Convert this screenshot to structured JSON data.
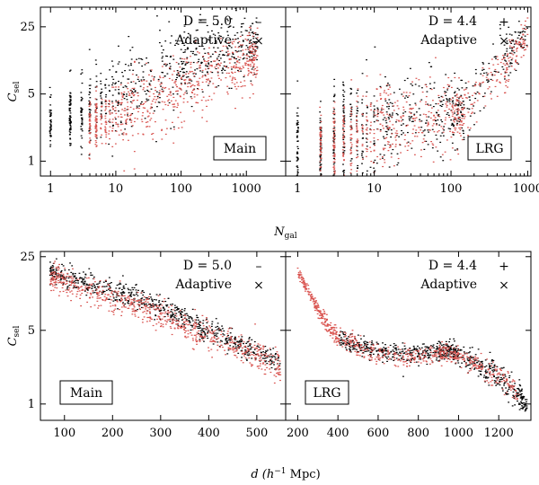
{
  "figure": {
    "top_xlabel_main": "N",
    "top_xlabel_sub": "gal",
    "bottom_xlabel": "d (h",
    "bottom_xlabel_sup": "−1",
    "bottom_xlabel_tail": " Mpc)",
    "ylabel_main": "C",
    "ylabel_sub": "sel"
  },
  "chart_data": [
    {
      "type": "scatter",
      "panel": "top-left",
      "label": "Main",
      "xscale": "log",
      "yscale": "log",
      "xlim": [
        0.7,
        4000
      ],
      "ylim": [
        0.7,
        40
      ],
      "xticks": [
        1,
        10,
        100,
        1000
      ],
      "xtick_labels": [
        "1",
        "10",
        "100",
        "1000"
      ],
      "yticks": [
        1,
        5,
        25
      ],
      "ytick_labels": [
        "1",
        "5",
        "25"
      ],
      "legend": [
        {
          "text": "D = 5.0",
          "symbol": "–",
          "color": "#000000"
        },
        {
          "text": "Adaptive",
          "symbol": "×",
          "color": "#d9534f"
        }
      ],
      "series": [
        {
          "name": "D = 5.0",
          "color": "#000000",
          "x": [
            1,
            2,
            3,
            5,
            10,
            20,
            50,
            100,
            200,
            500,
            1000,
            1500
          ],
          "y": [
            2.5,
            2.8,
            3.0,
            3.5,
            4.5,
            6.0,
            8.0,
            10.0,
            12.0,
            14.0,
            16.0,
            17.0
          ],
          "spread": [
            0.3,
            0.35,
            0.4,
            0.5,
            0.5,
            0.5,
            0.5,
            0.45,
            0.45,
            0.4,
            0.35,
            0.3
          ]
        },
        {
          "name": "Adaptive",
          "color": "#d9534f",
          "x": [
            4,
            5,
            10,
            20,
            50,
            100,
            200,
            500,
            1000,
            1500
          ],
          "y": [
            2.2,
            2.5,
            3.0,
            3.6,
            4.5,
            5.5,
            7.0,
            9.0,
            11.0,
            12.5
          ],
          "spread": [
            0.3,
            0.35,
            0.4,
            0.45,
            0.45,
            0.4,
            0.4,
            0.35,
            0.3,
            0.3
          ]
        }
      ]
    },
    {
      "type": "scatter",
      "panel": "top-right",
      "label": "LRG",
      "xscale": "log",
      "yscale": "log",
      "xlim": [
        0.7,
        1100
      ],
      "ylim": [
        0.7,
        40
      ],
      "xticks": [
        1,
        10,
        100,
        1000
      ],
      "xtick_labels": [
        "1",
        "10",
        "100",
        "1000"
      ],
      "yticks": [
        1,
        5,
        25
      ],
      "ytick_labels": [
        "1",
        "5",
        "25"
      ],
      "legend": [
        {
          "text": "D = 4.4",
          "symbol": "+",
          "color": "#000000"
        },
        {
          "text": "Adaptive",
          "symbol": "×",
          "color": "#d9534f"
        }
      ],
      "series": [
        {
          "name": "D = 4.4",
          "color": "#000000",
          "x": [
            1,
            2,
            3,
            5,
            10,
            20,
            50,
            100,
            150,
            500,
            1000
          ],
          "y": [
            1.4,
            1.6,
            1.8,
            2.0,
            2.3,
            2.6,
            3.0,
            3.3,
            3.5,
            12.0,
            22.0
          ],
          "spread": [
            0.45,
            0.5,
            0.55,
            0.6,
            0.55,
            0.5,
            0.45,
            0.4,
            0.35,
            0.3,
            0.2
          ]
        },
        {
          "name": "Adaptive",
          "color": "#d9534f",
          "x": [
            2,
            3,
            5,
            10,
            20,
            50,
            100,
            150,
            500,
            1000
          ],
          "y": [
            1.5,
            1.7,
            1.9,
            2.2,
            2.5,
            2.8,
            3.1,
            3.3,
            10.0,
            20.0
          ],
          "spread": [
            0.4,
            0.45,
            0.5,
            0.5,
            0.45,
            0.4,
            0.35,
            0.3,
            0.3,
            0.2
          ]
        }
      ]
    },
    {
      "type": "scatter",
      "panel": "bottom-left",
      "label": "Main",
      "xscale": "linear",
      "yscale": "log",
      "xlim": [
        50,
        560
      ],
      "ylim": [
        0.7,
        28
      ],
      "xticks": [
        100,
        200,
        300,
        400,
        500
      ],
      "xtick_labels": [
        "100",
        "200",
        "300",
        "400",
        "500"
      ],
      "yticks": [
        1,
        5,
        25
      ],
      "ytick_labels": [
        "1",
        "5",
        "25"
      ],
      "legend": [
        {
          "text": "D = 5.0",
          "symbol": "–",
          "color": "#000000"
        },
        {
          "text": "Adaptive",
          "symbol": "×",
          "color": "#d9534f"
        }
      ],
      "series": [
        {
          "name": "D = 5.0",
          "color": "#000000",
          "x": [
            70,
            100,
            150,
            200,
            250,
            300,
            350,
            400,
            450,
            500,
            550
          ],
          "y": [
            18,
            16,
            14,
            12,
            10,
            8.0,
            6.5,
            5.0,
            4.0,
            3.2,
            2.5
          ],
          "spread": [
            0.12,
            0.12,
            0.12,
            0.12,
            0.12,
            0.12,
            0.12,
            0.12,
            0.12,
            0.12,
            0.12
          ]
        },
        {
          "name": "Adaptive",
          "color": "#d9534f",
          "x": [
            70,
            100,
            150,
            200,
            250,
            300,
            350,
            400,
            450,
            500,
            550
          ],
          "y": [
            15,
            14,
            12,
            10,
            8.5,
            7.0,
            5.5,
            4.5,
            3.6,
            2.9,
            2.3
          ],
          "spread": [
            0.15,
            0.15,
            0.15,
            0.15,
            0.15,
            0.15,
            0.15,
            0.15,
            0.15,
            0.15,
            0.15
          ]
        }
      ]
    },
    {
      "type": "scatter",
      "panel": "bottom-right",
      "label": "LRG",
      "xscale": "linear",
      "yscale": "log",
      "xlim": [
        140,
        1360
      ],
      "ylim": [
        0.7,
        28
      ],
      "xticks": [
        200,
        400,
        600,
        800,
        1000,
        1200
      ],
      "xtick_labels": [
        "200",
        "400",
        "600",
        "800",
        "1000",
        "1200"
      ],
      "yticks": [
        1,
        5,
        25
      ],
      "ytick_labels": [
        "1",
        "5",
        "25"
      ],
      "legend": [
        {
          "text": "D = 4.4",
          "symbol": "+",
          "color": "#000000"
        },
        {
          "text": "Adaptive",
          "symbol": "×",
          "color": "#d9534f"
        }
      ],
      "series": [
        {
          "name": "D = 4.4",
          "color": "#000000",
          "x": [
            400,
            500,
            600,
            700,
            800,
            900,
            950,
            1000,
            1100,
            1200,
            1300,
            1340
          ],
          "y": [
            4.2,
            3.6,
            3.2,
            3.0,
            3.0,
            3.2,
            3.3,
            3.0,
            2.4,
            1.8,
            1.2,
            0.9
          ],
          "spread": [
            0.1,
            0.1,
            0.1,
            0.1,
            0.1,
            0.1,
            0.1,
            0.1,
            0.12,
            0.15,
            0.15,
            0.1
          ]
        },
        {
          "name": "Adaptive",
          "color": "#d9534f",
          "x": [
            200,
            250,
            300,
            350,
            400,
            500,
            600,
            700,
            800,
            900,
            950,
            1000,
            1100,
            1200,
            1300
          ],
          "y": [
            18,
            12,
            8.0,
            5.5,
            4.4,
            3.5,
            3.0,
            2.8,
            2.9,
            3.0,
            3.1,
            2.8,
            2.3,
            1.8,
            1.3
          ],
          "spread": [
            0.05,
            0.06,
            0.08,
            0.1,
            0.1,
            0.1,
            0.1,
            0.1,
            0.1,
            0.1,
            0.1,
            0.1,
            0.1,
            0.12,
            0.12
          ]
        }
      ]
    }
  ]
}
